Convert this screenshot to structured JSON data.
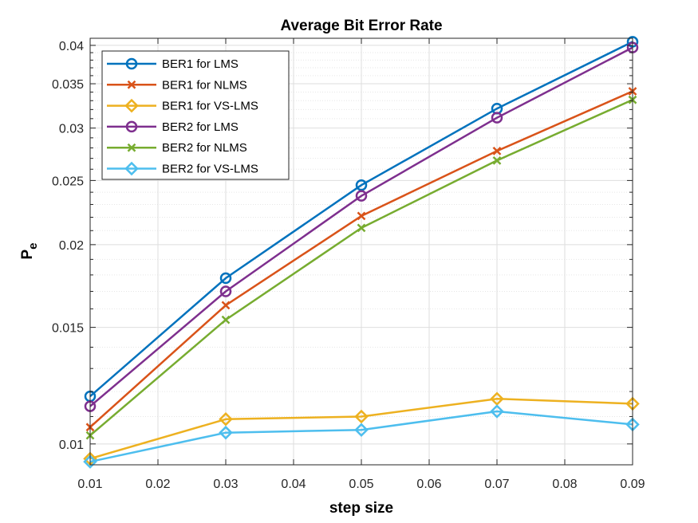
{
  "chart_data": {
    "type": "line",
    "title": "Average Bit Error Rate",
    "xlabel": "step size",
    "ylabel_main": "P",
    "ylabel_sub": "e",
    "x": [
      0.01,
      0.03,
      0.05,
      0.07,
      0.09
    ],
    "xlim": [
      0.01,
      0.09
    ],
    "ylim": [
      0.0093,
      0.041
    ],
    "yscale": "log",
    "grid": true,
    "legend_position": "top-left",
    "xticks": [
      "0.01",
      "0.02",
      "0.03",
      "0.04",
      "0.05",
      "0.06",
      "0.07",
      "0.08",
      "0.09"
    ],
    "yticks": [
      "0.01",
      "0.015",
      "0.02",
      "0.025",
      "0.03",
      "0.035",
      "0.04"
    ],
    "series": [
      {
        "name": "BER1 for LMS",
        "color": "#0072BD",
        "marker": "circle",
        "values": [
          0.0118,
          0.0178,
          0.0246,
          0.0321,
          0.0405
        ]
      },
      {
        "name": "BER1 for NLMS",
        "color": "#D95319",
        "marker": "x",
        "values": [
          0.0106,
          0.0162,
          0.0221,
          0.0277,
          0.0341
        ]
      },
      {
        "name": "BER1 for VS-LMS",
        "color": "#EDB120",
        "marker": "diamond",
        "values": [
          0.0095,
          0.0109,
          0.011,
          0.0117,
          0.0115
        ]
      },
      {
        "name": "BER2 for LMS",
        "color": "#7E2F8E",
        "marker": "circle",
        "values": [
          0.0114,
          0.017,
          0.0237,
          0.0311,
          0.0397
        ]
      },
      {
        "name": "BER2 for NLMS",
        "color": "#77AC30",
        "marker": "x",
        "values": [
          0.0103,
          0.0154,
          0.0212,
          0.0268,
          0.0331
        ]
      },
      {
        "name": "BER2 for VS-LMS",
        "color": "#4DBEEE",
        "marker": "diamond",
        "values": [
          0.0094,
          0.0104,
          0.0105,
          0.0112,
          0.0107
        ]
      }
    ]
  }
}
